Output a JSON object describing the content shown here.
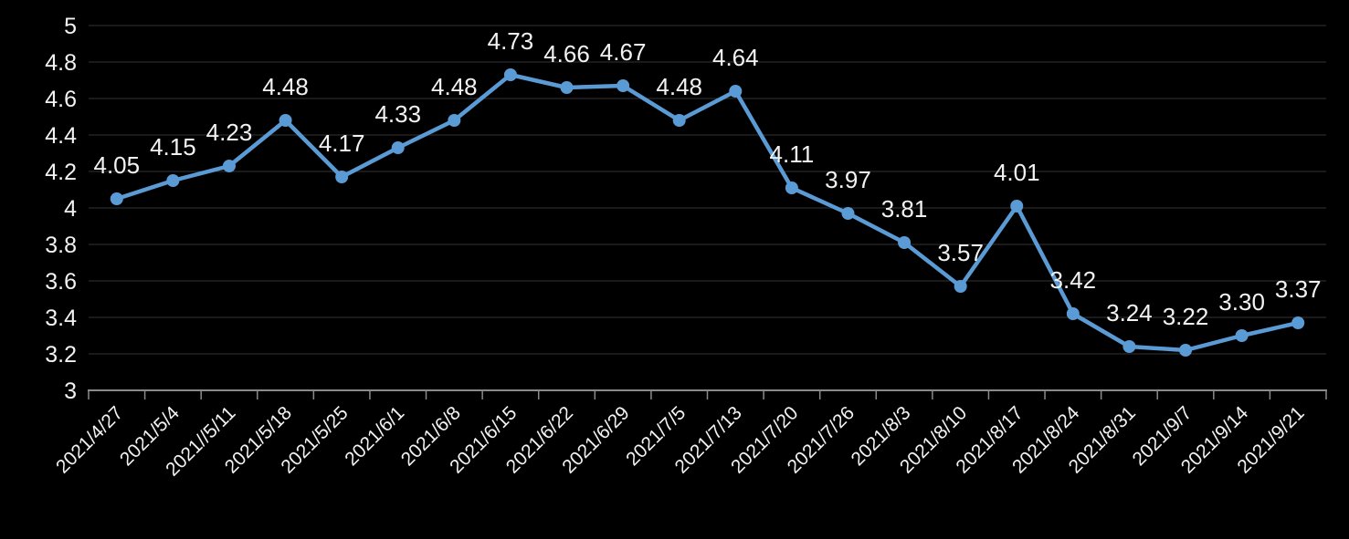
{
  "chart_data": {
    "type": "line",
    "title": "",
    "xlabel": "",
    "ylabel": "",
    "categories": [
      "2021/4/27",
      "2021/5/4",
      "2021//5/11",
      "2021/5/18",
      "2021/5/25",
      "2021/6/1",
      "2021/6/8",
      "2021/6/15",
      "2021/6/22",
      "2021/6/29",
      "2021/7/5",
      "2021/7/13",
      "2021/7/20",
      "2021/7/26",
      "2021/8/3",
      "2021/8/10",
      "2021/8/17",
      "2021/8/24",
      "2021/8/31",
      "2021/9/7",
      "2021/9/14",
      "2021/9/21"
    ],
    "series": [
      {
        "name": "",
        "values": [
          4.05,
          4.15,
          4.23,
          4.48,
          4.17,
          4.33,
          4.48,
          4.73,
          4.66,
          4.67,
          4.48,
          4.64,
          4.11,
          3.97,
          3.81,
          3.57,
          4.01,
          3.42,
          3.24,
          3.22,
          3.3,
          3.37
        ]
      }
    ],
    "data_labels": [
      "4.05",
      "4.15",
      "4.23",
      "4.48",
      "4.17",
      "4.33",
      "4.48",
      "4.73",
      "4.66",
      "4.67",
      "4.48",
      "4.64",
      "4.11",
      "3.97",
      "3.81",
      "3.57",
      "4.01",
      "3.42",
      "3.24",
      "3.22",
      "3.30",
      "3.37"
    ],
    "ylim": [
      3,
      5
    ],
    "ytick_values": [
      3,
      3.2,
      3.4,
      3.6,
      3.8,
      4,
      4.2,
      4.4,
      4.6,
      4.8,
      5
    ],
    "ytick_labels": [
      "3",
      "3.2",
      "3.4",
      "3.6",
      "3.8",
      "4",
      "4.2",
      "4.4",
      "4.6",
      "4.8",
      "5"
    ],
    "x_label_rotation": 45,
    "grid": "horizontal",
    "legend_position": "none",
    "colors": {
      "background": "#000000",
      "line": "#5B9BD5",
      "marker": "#5B9BD5",
      "grid": "#333333",
      "axis": "#8A8A8A",
      "label_text": "#F2F2F2",
      "tick_text": "#F2F2F2"
    }
  }
}
